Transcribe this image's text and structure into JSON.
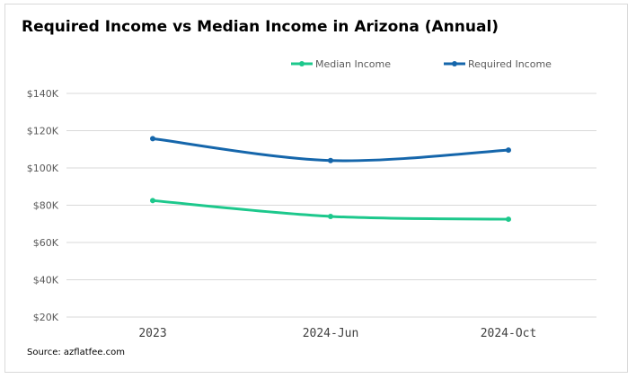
{
  "chart_data": {
    "type": "line",
    "title": "Required Income vs Median Income in Arizona (Annual)",
    "categories": [
      "2023",
      "2024-Jun",
      "2024-Oct"
    ],
    "series": [
      {
        "name": "Median Income",
        "values": [
          82500,
          74000,
          72500
        ],
        "color": "#1dc88c"
      },
      {
        "name": "Required Income",
        "values": [
          115700,
          104000,
          109600
        ],
        "color": "#1566ab"
      }
    ],
    "y_ticks": [
      {
        "value": 20000,
        "label": "$20K"
      },
      {
        "value": 40000,
        "label": "$40K"
      },
      {
        "value": 60000,
        "label": "$60K"
      },
      {
        "value": 80000,
        "label": "$80K"
      },
      {
        "value": 100000,
        "label": "$100K"
      },
      {
        "value": 120000,
        "label": "$120K"
      },
      {
        "value": 140000,
        "label": "$140K"
      }
    ],
    "ylim": [
      20000,
      140000
    ],
    "grid": true,
    "legend_position": "top-right",
    "source": "Source: azflatfee.com"
  },
  "colors": {
    "grid": "#d9d9d9",
    "median": "#1dc88c",
    "required": "#1566ab"
  }
}
